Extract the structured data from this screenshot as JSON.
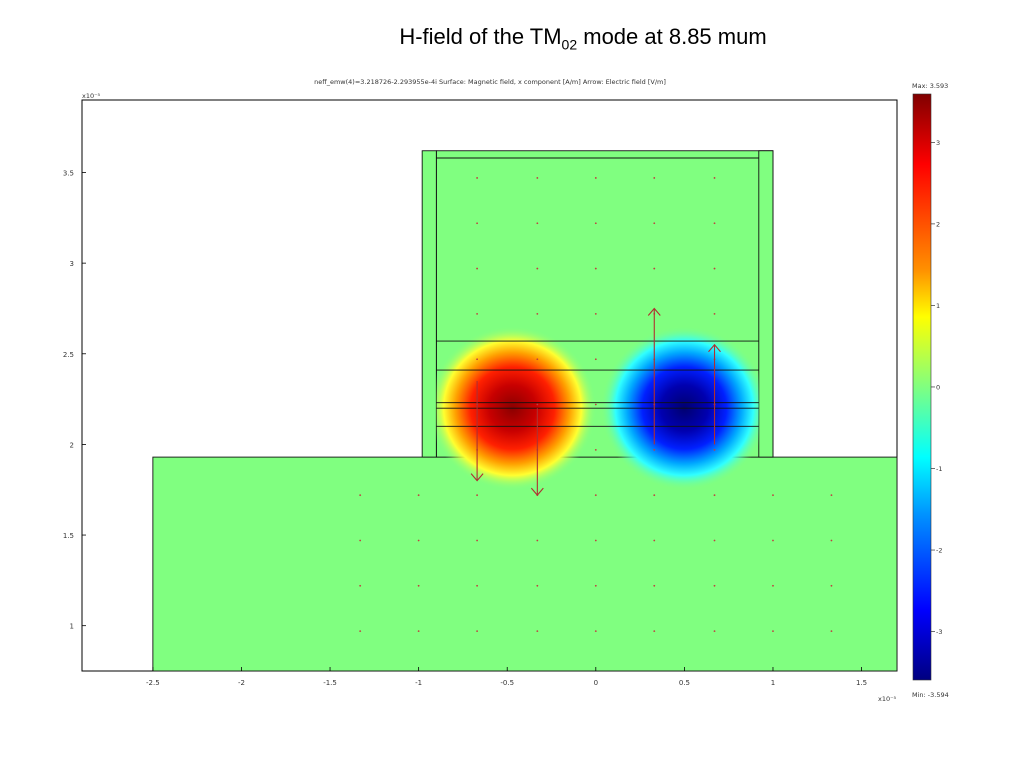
{
  "slide": {
    "title_main": "H-field of the TM",
    "title_sub": "02",
    "title_rest": " mode at 8.85 mum"
  },
  "chart_data": {
    "type": "heatmap",
    "header": "neff_emw(4)=3.218726-2.293955e-4i   Surface: Magnetic field, x component [A/m]   Arrow: Electric field [V/m]",
    "x_exponent": "x10⁻⁵",
    "y_exponent": "x10⁻⁵",
    "xlim": [
      -2.5,
      1.7
    ],
    "ylim": [
      0.75,
      3.9
    ],
    "xticks": [
      -2.5,
      -2,
      -1.5,
      -1,
      -0.5,
      0,
      0.5,
      1,
      1.5
    ],
    "yticks": [
      1,
      1.5,
      2,
      2.5,
      3,
      3.5
    ],
    "colorbar": {
      "max_label": "Max: 3.593",
      "min_label": "Min: -3.594",
      "max": 3.593,
      "min": -3.594,
      "ticks": [
        3,
        2,
        1,
        0,
        -1,
        -2,
        -3
      ]
    },
    "geometry": {
      "substrate": {
        "x": [
          -2.5,
          1.7
        ],
        "y": [
          0.75,
          1.93
        ]
      },
      "ridge": {
        "x": [
          -0.9,
          1.0
        ],
        "y": [
          1.93,
          3.62
        ]
      },
      "sidewall_left": {
        "x": [
          -0.98,
          -0.9
        ],
        "y": [
          1.93,
          3.62
        ]
      },
      "sidewall_right": {
        "x": [
          0.92,
          1.0
        ],
        "y": [
          1.93,
          3.62
        ]
      },
      "layer_lines_y": [
        2.1,
        2.2,
        2.23,
        2.41,
        2.57,
        3.58
      ]
    },
    "field_lobes": [
      {
        "x": -0.47,
        "y": 2.2,
        "value": 3.593
      },
      {
        "x": 0.5,
        "y": 2.2,
        "value": -3.594
      }
    ],
    "arrows": [
      {
        "x": -0.67,
        "y": 2.35,
        "dir": "down",
        "length": 0.55
      },
      {
        "x": -0.33,
        "y": 2.2,
        "dir": "down",
        "length": 0.48
      },
      {
        "x": 0.33,
        "y": 2.0,
        "dir": "up",
        "length": 0.75
      },
      {
        "x": 0.67,
        "y": 2.0,
        "dir": "up",
        "length": 0.55
      }
    ]
  }
}
